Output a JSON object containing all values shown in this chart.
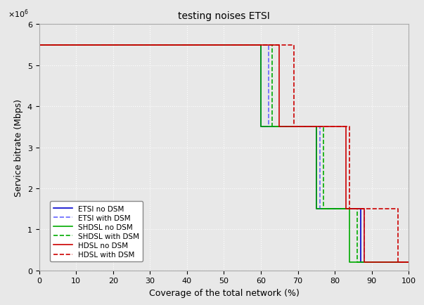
{
  "title": "testing noises ETSI",
  "xlabel": "Coverage of the total network (%)",
  "ylabel": "Service bitrate (Mbps)",
  "xlim": [
    0,
    100
  ],
  "ylim": [
    0,
    6000000
  ],
  "yticks": [
    0,
    1000000,
    2000000,
    3000000,
    4000000,
    5000000,
    6000000
  ],
  "xticks": [
    0,
    10,
    20,
    30,
    40,
    50,
    60,
    70,
    80,
    90,
    100
  ],
  "series": [
    {
      "label": "ETSI no DSM",
      "color": "#0000cc",
      "linestyle": "-",
      "linewidth": 1.2,
      "x": [
        0,
        60,
        60,
        75,
        75,
        87,
        87,
        100
      ],
      "y": [
        5500000,
        5500000,
        3500000,
        3500000,
        1500000,
        1500000,
        200000,
        200000
      ]
    },
    {
      "label": "ETSI with DSM",
      "color": "#6666ff",
      "linestyle": "--",
      "linewidth": 1.2,
      "x": [
        0,
        62,
        62,
        76,
        76,
        88,
        88,
        100
      ],
      "y": [
        5500000,
        5500000,
        3500000,
        3500000,
        1500000,
        1500000,
        200000,
        200000
      ]
    },
    {
      "label": "SHDSL no DSM",
      "color": "#00aa00",
      "linestyle": "-",
      "linewidth": 1.2,
      "x": [
        0,
        60,
        60,
        75,
        75,
        84,
        84,
        100
      ],
      "y": [
        5500000,
        5500000,
        3500000,
        3500000,
        1500000,
        1500000,
        200000,
        200000
      ]
    },
    {
      "label": "SHDSL with DSM",
      "color": "#00aa00",
      "linestyle": "--",
      "linewidth": 1.2,
      "x": [
        0,
        63,
        63,
        77,
        77,
        86,
        86,
        100
      ],
      "y": [
        5500000,
        5500000,
        3500000,
        3500000,
        1500000,
        1500000,
        200000,
        200000
      ]
    },
    {
      "label": "HDSL no DSM",
      "color": "#cc0000",
      "linestyle": "-",
      "linewidth": 1.2,
      "x": [
        0,
        65,
        65,
        83,
        83,
        88,
        88,
        100
      ],
      "y": [
        5500000,
        5500000,
        3500000,
        3500000,
        1500000,
        1500000,
        200000,
        200000
      ]
    },
    {
      "label": "HDSL with DSM",
      "color": "#cc0000",
      "linestyle": "--",
      "linewidth": 1.2,
      "x": [
        0,
        69,
        69,
        84,
        84,
        97,
        97,
        100
      ],
      "y": [
        5500000,
        5500000,
        3500000,
        3500000,
        1500000,
        1500000,
        200000,
        200000
      ]
    }
  ],
  "bg_color": "#e8e8e8",
  "grid_color": "#ffffff",
  "fig_color": "#e8e8e8"
}
